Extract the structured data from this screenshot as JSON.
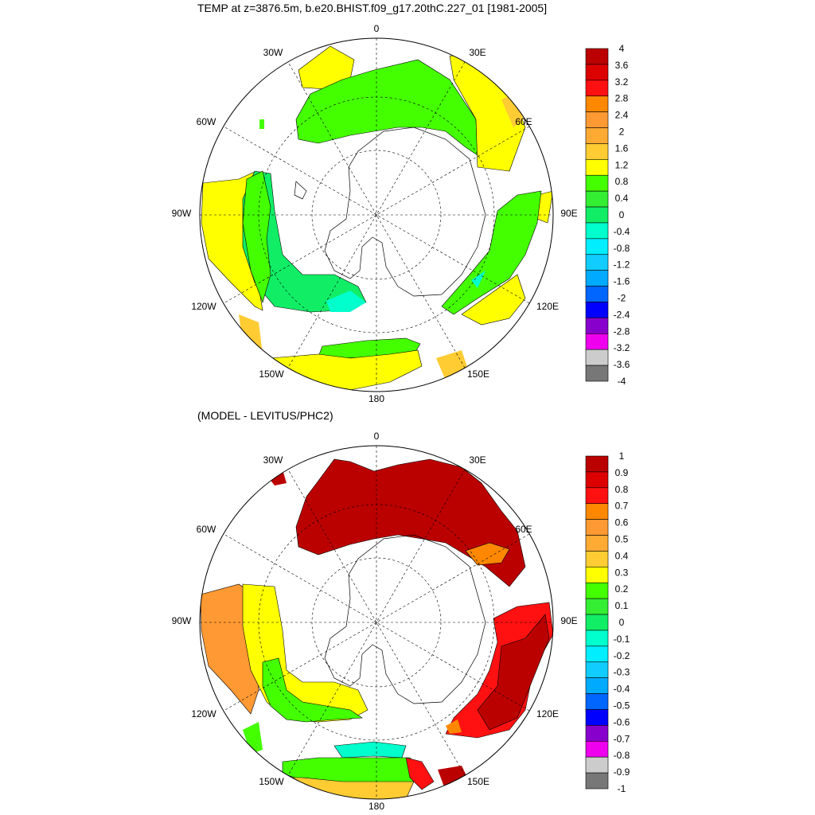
{
  "panels": [
    {
      "title": "TEMP at z=3876.5m, b.e20.BHIST.f09_g17.20thC.227_01 [1981-2005]",
      "colorbar": {
        "labels": [
          "4",
          "3.6",
          "3.2",
          "2.8",
          "2.4",
          "2",
          "1.6",
          "1.2",
          "0.8",
          "0.4",
          "0",
          "-0.4",
          "-0.8",
          "-1.2",
          "-1.6",
          "-2",
          "-2.4",
          "-2.8",
          "-3.2",
          "-3.6",
          "-4"
        ],
        "colors": [
          "#bb0000",
          "#dd0000",
          "#ff1111",
          "#ff8800",
          "#ff9933",
          "#ffaa33",
          "#ffcc33",
          "#ffff00",
          "#44ff00",
          "#33ee33",
          "#11ee66",
          "#00ffcc",
          "#00eeff",
          "#11ccff",
          "#00aaff",
          "#0066ff",
          "#0000ff",
          "#8800cc",
          "#ee00ee",
          "#cccccc",
          "#777777"
        ]
      }
    },
    {
      "title": "(MODEL - LEVITUS/PHC2)",
      "colorbar": {
        "labels": [
          "1",
          "0.9",
          "0.8",
          "0.7",
          "0.6",
          "0.5",
          "0.4",
          "0.3",
          "0.2",
          "0.1",
          "0",
          "-0.1",
          "-0.2",
          "-0.3",
          "-0.4",
          "-0.5",
          "-0.6",
          "-0.7",
          "-0.8",
          "-0.9",
          "-1"
        ],
        "colors": [
          "#bb0000",
          "#dd0000",
          "#ff1111",
          "#ff8800",
          "#ff9933",
          "#ffaa33",
          "#ffcc33",
          "#ffff00",
          "#44ff00",
          "#33ee33",
          "#11ee66",
          "#00ffcc",
          "#00eeff",
          "#11ccff",
          "#00aaff",
          "#0066ff",
          "#0000ff",
          "#8800cc",
          "#ee00ee",
          "#cccccc",
          "#777777"
        ]
      }
    }
  ],
  "longitude_labels": [
    "0",
    "30E",
    "60E",
    "90E",
    "120E",
    "150E",
    "180",
    "150W",
    "120W",
    "90W",
    "60W",
    "30W"
  ]
}
